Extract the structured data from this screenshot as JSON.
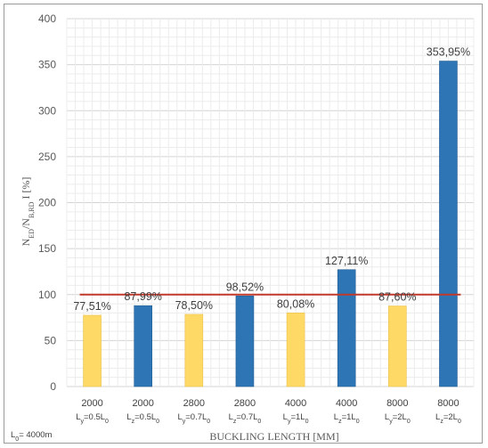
{
  "chart_data": {
    "type": "bar",
    "ylabel": "N_ED/N_B,RD I [%]",
    "xlabel": "BUCKLING LENGTH [MM]",
    "ylim": [
      0,
      400
    ],
    "yticks": [
      0,
      50,
      100,
      150,
      200,
      250,
      300,
      350,
      400
    ],
    "grid": true,
    "note": "L0= 4000m",
    "reference_line": {
      "value": 100,
      "color": "#c0392b"
    },
    "colors": {
      "y": "#ffd966",
      "z": "#2e75b6"
    },
    "bars": [
      {
        "length": "2000",
        "axis": "y",
        "factor": "0.5",
        "value": 77.51,
        "label": "77,51%"
      },
      {
        "length": "2000",
        "axis": "z",
        "factor": "0.5",
        "value": 87.99,
        "label": "87,99%"
      },
      {
        "length": "2800",
        "axis": "y",
        "factor": "0.7",
        "value": 78.5,
        "label": "78,50%"
      },
      {
        "length": "2800",
        "axis": "z",
        "factor": "0.7",
        "value": 98.52,
        "label": "98,52%"
      },
      {
        "length": "4000",
        "axis": "y",
        "factor": "1",
        "value": 80.08,
        "label": "80,08%"
      },
      {
        "length": "4000",
        "axis": "z",
        "factor": "1",
        "value": 127.11,
        "label": "127,11%"
      },
      {
        "length": "8000",
        "axis": "y",
        "factor": "2",
        "value": 87.6,
        "label": "87,60%"
      },
      {
        "length": "8000",
        "axis": "z",
        "factor": "2",
        "value": 353.95,
        "label": "353,95%"
      }
    ]
  }
}
